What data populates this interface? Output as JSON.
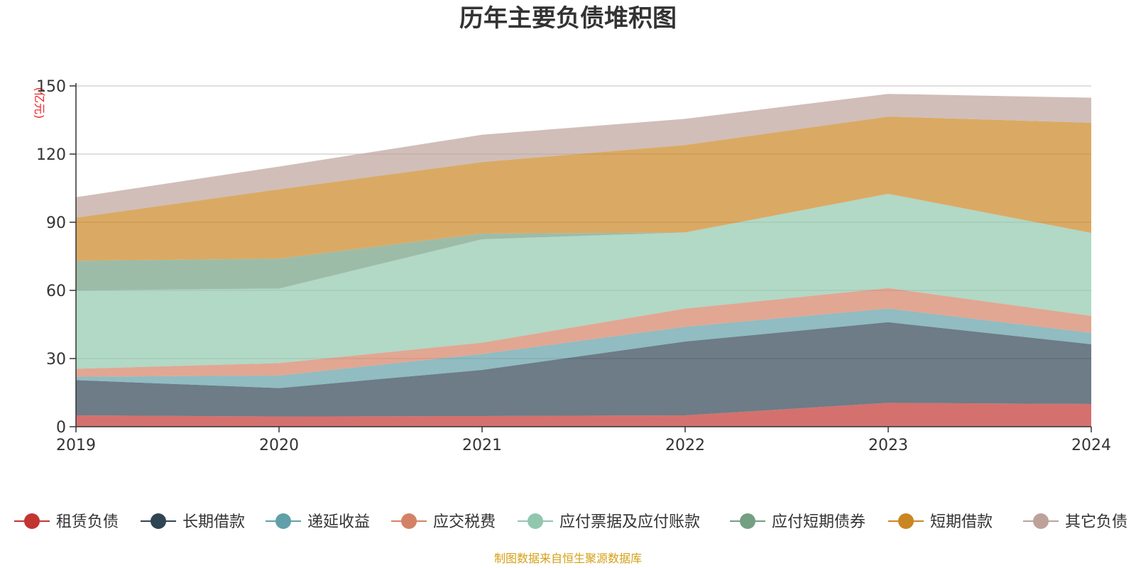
{
  "chart_data": {
    "type": "area",
    "stacked": true,
    "title": "历年主要负债堆积图",
    "unit": "(亿元)",
    "source": "制图数据来自恒生聚源数据库",
    "x": [
      "2019",
      "2020",
      "2021",
      "2022",
      "2023",
      "2024"
    ],
    "ylim": [
      0,
      150
    ],
    "yticks": [
      0,
      30,
      60,
      90,
      120,
      150
    ],
    "grid": true,
    "legend_position": "bottom",
    "series": [
      {
        "name": "租赁负债",
        "color": "#c23531",
        "values": [
          5,
          4.5,
          4.7,
          5,
          10.5,
          10
        ]
      },
      {
        "name": "长期借款",
        "color": "#2f4554",
        "values": [
          15.5,
          12.5,
          20.3,
          32.5,
          35.5,
          26.3
        ]
      },
      {
        "name": "递延收益",
        "color": "#61a0a8",
        "values": [
          1.5,
          5.5,
          7,
          6.5,
          6,
          5
        ]
      },
      {
        "name": "应交税费",
        "color": "#d48265",
        "values": [
          3.5,
          5.5,
          5,
          8,
          9,
          7.5
        ]
      },
      {
        "name": "应付票据及应付账款",
        "color": "#91c7ae",
        "values": [
          34.5,
          32.8,
          45.5,
          33.5,
          41.5,
          36.5
        ]
      },
      {
        "name": "应付短期债券",
        "color": "#749f83",
        "values": [
          13,
          13.2,
          2.5,
          0,
          0,
          0
        ]
      },
      {
        "name": "短期借款",
        "color": "#ca8622",
        "values": [
          19,
          30.5,
          31.5,
          38.5,
          34,
          48.5
        ]
      },
      {
        "name": "其它负债",
        "color": "#bda29a",
        "values": [
          9,
          10,
          12,
          11.5,
          10,
          11
        ]
      }
    ]
  }
}
